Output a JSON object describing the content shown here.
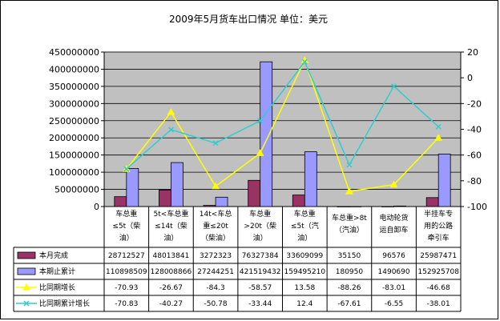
{
  "chart_data": {
    "type": "bar",
    "title": "2009年5月货车出口情况 单位：美元",
    "categories": [
      [
        "车总重",
        "≤5t（柴",
        "油）"
      ],
      [
        "5t<车总重",
        "≤14t（柴",
        "油）"
      ],
      [
        "14t<车总",
        "重≤20t",
        "（柴油）"
      ],
      [
        "车总重",
        ">20t（柴",
        "油）"
      ],
      [
        "车总重",
        "≤5t（汽",
        "油）"
      ],
      [
        "车总重>8t",
        "（汽油）"
      ],
      [
        "电动轮货",
        "运自卸车"
      ],
      [
        "半挂车专",
        "用的公路",
        "牵引车"
      ]
    ],
    "series": [
      {
        "name": "本月完成",
        "type": "bar",
        "axis": "left",
        "color": "#993366",
        "values": [
          28712527,
          48013841,
          3272323,
          76327384,
          33609099,
          35150,
          96576,
          25987471
        ],
        "labels": [
          "28712527",
          "48013841",
          "3272323",
          "76327384",
          "33609099",
          "35150",
          "96576",
          "25987471"
        ]
      },
      {
        "name": "本期止累计",
        "type": "bar",
        "axis": "left",
        "color": "#9999ff",
        "values": [
          110898509,
          128008866,
          27244251,
          421519432,
          159495210,
          180950,
          1490690,
          152925708
        ],
        "labels": [
          "110898509",
          "128008866",
          "27244251",
          "421519432",
          "159495210",
          "180950",
          "1490690",
          "152925708"
        ]
      },
      {
        "name": "比同期增长",
        "type": "line",
        "axis": "right",
        "color": "#ffff00",
        "marker": "triangle",
        "values": [
          -70.93,
          -26.67,
          -84.3,
          -58.57,
          13.58,
          -88.26,
          -83.01,
          -46.68
        ],
        "labels": [
          "-70.93",
          "-26.67",
          "-84.3",
          "-58.57",
          "13.58",
          "-88.26",
          "-83.01",
          "-46.68"
        ]
      },
      {
        "name": "比同期累计增长",
        "type": "line",
        "axis": "right",
        "color": "#33cccc",
        "marker": "x",
        "values": [
          -70.83,
          -40.27,
          -50.78,
          -33.44,
          12.4,
          -67.61,
          -6.55,
          -38.01
        ],
        "labels": [
          "-70.83",
          "-40.27",
          "-50.78",
          "-33.44",
          "12.4",
          "-67.61",
          "-6.55",
          "-38.01"
        ]
      }
    ],
    "y_left": {
      "min": 0,
      "max": 450000000,
      "step": 50000000,
      "ticks": [
        "0",
        "50000000",
        "100000000",
        "150000000",
        "200000000",
        "250000000",
        "300000000",
        "350000000",
        "400000000",
        "450000000"
      ]
    },
    "y_right": {
      "min": -100,
      "max": 20,
      "step": 20,
      "ticks": [
        "-100",
        "-80",
        "-60",
        "-40",
        "-20",
        "0",
        "20"
      ]
    },
    "plot_background": "#c0c0c0",
    "legend": "data-table"
  }
}
